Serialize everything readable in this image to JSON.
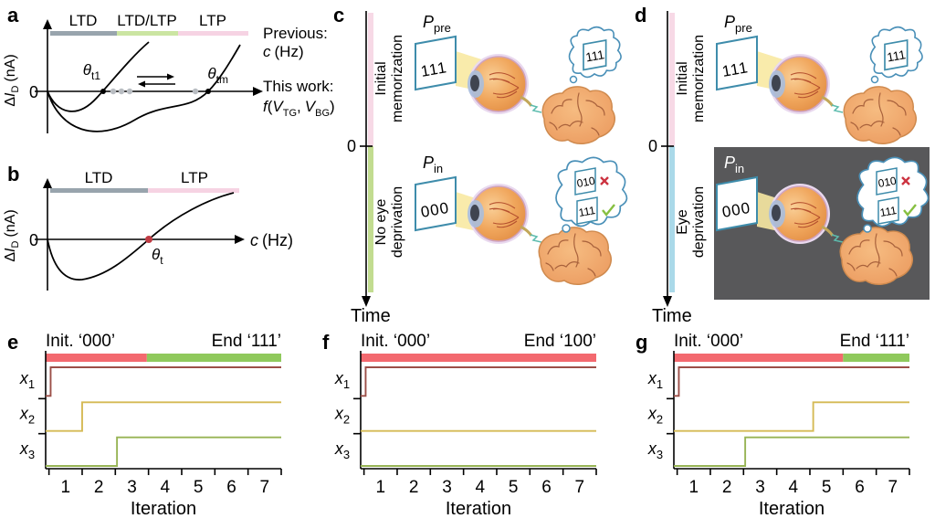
{
  "figure_title": "Synaptic plasticity figure with memorization schematics and iteration step charts",
  "panel_a": {
    "letter": "a",
    "bar_regions": [
      {
        "label": "LTD",
        "color": "#98a4ad"
      },
      {
        "label": "LTD/LTP",
        "color": "#cbe5a2"
      },
      {
        "label": "LTP",
        "color": "#f6d3e3"
      }
    ],
    "zero": "0",
    "y_axis": {
      "delta": "Δ",
      "symbol": "I",
      "subscript": "D",
      "unit": "(nA)"
    },
    "threshold_1": {
      "symbol": "θ",
      "subscript": "t1"
    },
    "threshold_m": {
      "symbol": "θ",
      "subscript": "tm"
    },
    "right_text": {
      "previous": "Previous:",
      "previous_var": "c",
      "previous_unit": "(Hz)",
      "this_work": "This work:",
      "fn_f": "f",
      "fn_open": "(",
      "fn_v1": "V",
      "fn_sub1": "TG",
      "fn_comma": ",",
      "fn_v2": "V",
      "fn_sub2": "BG",
      "fn_close": ")"
    }
  },
  "panel_b": {
    "letter": "b",
    "bar_regions": [
      {
        "label": "LTD",
        "color": "#98a4ad"
      },
      {
        "label": "LTP",
        "color": "#f6d3e3"
      }
    ],
    "zero": "0",
    "y_axis": {
      "delta": "Δ",
      "symbol": "I",
      "subscript": "D",
      "unit": "(nA)"
    },
    "threshold": {
      "symbol": "θ",
      "subscript": "t"
    },
    "x_axis": {
      "var": "c",
      "unit": "(Hz)"
    },
    "threshold_dot_color": "#bf3b43"
  },
  "panel_c": {
    "letter": "c",
    "zero": "0",
    "time_label": "Time",
    "phase_top": [
      "Initial",
      "memorization"
    ],
    "phase_bottom": [
      "No eye",
      "deprivation"
    ],
    "scene1": {
      "p": {
        "sym": "P",
        "sub": "pre"
      },
      "card": "111",
      "thought": "111"
    },
    "scene2": {
      "p": {
        "sym": "P",
        "sub": "in"
      },
      "card": "000",
      "thought_wrong": "010",
      "thought_right": "111"
    },
    "colors": {
      "pre_band": "#f7d9e6",
      "post_band": "#c2dc90"
    }
  },
  "panel_d": {
    "letter": "d",
    "zero": "0",
    "time_label": "Time",
    "phase_top": [
      "Initial",
      "memorization"
    ],
    "phase_bottom": [
      "Eye",
      "deprivation"
    ],
    "scene1": {
      "p": {
        "sym": "P",
        "sub": "pre"
      },
      "card": "111",
      "thought": "111"
    },
    "scene2": {
      "p": {
        "sym": "P",
        "sub": "in"
      },
      "card": "000",
      "thought_wrong": "010",
      "thought_right": "111"
    },
    "colors": {
      "pre_band": "#f7d9e6",
      "post_band": "#aad9e9",
      "box": "#58585a"
    }
  },
  "icon_colors": {
    "wrong_mark": "#cc3340",
    "check_mark": "#86bf40",
    "card_border": "#3e8cab",
    "bubble_border": "#4a90b8",
    "beam": "#f8e9a2"
  },
  "chart_data": {
    "schematics": [
      {
        "panel": "a",
        "type": "line",
        "regions": [
          "LTD",
          "LTD/LTP",
          "LTP"
        ],
        "ylabel": "ΔI_D (nA)",
        "x_axis_previous": "c (Hz)",
        "x_axis_this_work": "f(V_TG, V_BG)",
        "zero_crossings": [
          "θ_t1",
          "θ_tm"
        ],
        "note": "two zero-crossing curves with shiftable threshold between θ_t1 and θ_tm"
      },
      {
        "panel": "b",
        "type": "line",
        "regions": [
          "LTD",
          "LTP"
        ],
        "ylabel": "ΔI_D (nA)",
        "xlabel": "c (Hz)",
        "zero_crossing": "θ_t"
      }
    ],
    "step_charts": [
      {
        "panel": "e",
        "type": "line",
        "title_left": "Init. ‘000’",
        "title_right": "End ‘111’",
        "x_label": "Iteration",
        "x_range": [
          0.4,
          7.5
        ],
        "x_ticks": [
          0.5,
          1.5,
          2.5,
          3.5,
          4.5,
          5.5,
          6.5,
          7.5
        ],
        "x_ticklabels": [
          "1",
          "2",
          "3",
          "4",
          "5",
          "6",
          "7"
        ],
        "status_bar": {
          "red_until": 3.45,
          "red": "#f3696f",
          "green": "#8fc95c"
        },
        "series": [
          {
            "label": "x",
            "sub": "1",
            "color": "#9c4f48",
            "initial": 0,
            "final": 1,
            "step_iteration": 0.55
          },
          {
            "label": "x",
            "sub": "2",
            "color": "#d5ba55",
            "initial": 0,
            "final": 1,
            "step_iteration": 1.5
          },
          {
            "label": "x",
            "sub": "3",
            "color": "#97b455",
            "initial": 0,
            "final": 1,
            "step_iteration": 2.55
          }
        ]
      },
      {
        "panel": "f",
        "type": "line",
        "title_left": "Init. ‘000’",
        "title_right": "End ‘100’",
        "x_label": "Iteration",
        "x_range": [
          0.4,
          7.5
        ],
        "x_ticks": [
          0.5,
          1.5,
          2.5,
          3.5,
          4.5,
          5.5,
          6.5,
          7.5
        ],
        "x_ticklabels": [
          "1",
          "2",
          "3",
          "4",
          "5",
          "6",
          "7"
        ],
        "status_bar": {
          "red_until": 7.5,
          "red": "#f3696f",
          "green": "#8fc95c"
        },
        "series": [
          {
            "label": "x",
            "sub": "1",
            "color": "#9c4f48",
            "initial": 0,
            "final": 1,
            "step_iteration": 0.55
          },
          {
            "label": "x",
            "sub": "2",
            "color": "#d5ba55",
            "initial": 0,
            "final": 0,
            "step_iteration": null
          },
          {
            "label": "x",
            "sub": "3",
            "color": "#97b455",
            "initial": 0,
            "final": 0,
            "step_iteration": null
          }
        ]
      },
      {
        "panel": "g",
        "type": "line",
        "title_left": "Init. ‘000’",
        "title_right": "End ‘111’",
        "x_label": "Iteration",
        "x_range": [
          0.4,
          7.5
        ],
        "x_ticks": [
          0.5,
          1.5,
          2.5,
          3.5,
          4.5,
          5.5,
          6.5,
          7.5
        ],
        "x_ticklabels": [
          "1",
          "2",
          "3",
          "4",
          "5",
          "6",
          "7"
        ],
        "status_bar": {
          "red_until": 5.5,
          "red": "#f3696f",
          "green": "#8fc95c"
        },
        "series": [
          {
            "label": "x",
            "sub": "1",
            "color": "#9c4f48",
            "initial": 0,
            "final": 1,
            "step_iteration": 0.55
          },
          {
            "label": "x",
            "sub": "2",
            "color": "#d5ba55",
            "initial": 0,
            "final": 1,
            "step_iteration": 4.6
          },
          {
            "label": "x",
            "sub": "3",
            "color": "#97b455",
            "initial": 0,
            "final": 1,
            "step_iteration": 2.55
          }
        ]
      }
    ]
  }
}
